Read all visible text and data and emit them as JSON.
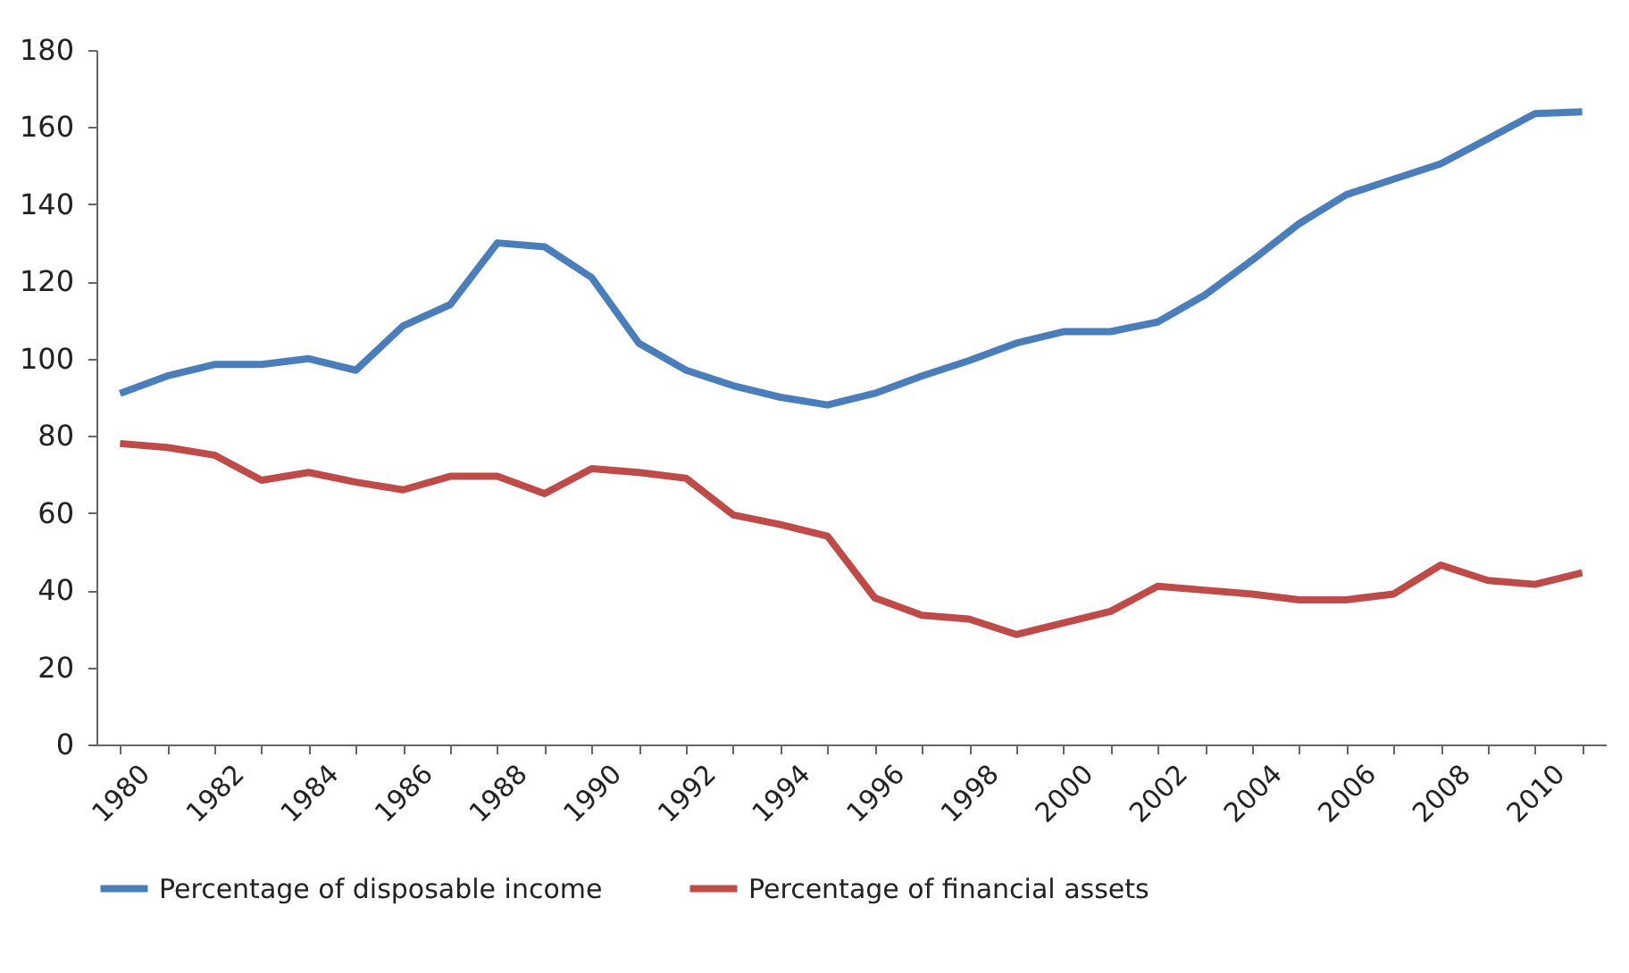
{
  "chart_data": {
    "type": "line",
    "categories": [
      "1980",
      null,
      "1982",
      null,
      "1984",
      null,
      "1986",
      null,
      "1988",
      null,
      "1990",
      null,
      "1992",
      null,
      "1994",
      null,
      "1996",
      null,
      "1998",
      null,
      "2000",
      null,
      "2002",
      null,
      "2004",
      null,
      "2006",
      null,
      "2008",
      null,
      "2010",
      null
    ],
    "series": [
      {
        "name": "Percentage of disposable income",
        "color": "#4a7ebb",
        "values": [
          91,
          95.5,
          98.5,
          98.5,
          100,
          97,
          108.5,
          114,
          130,
          129,
          121,
          104,
          97,
          93,
          90,
          88,
          91,
          95.5,
          99.5,
          104,
          107,
          107,
          109.5,
          116.5,
          125.5,
          135,
          142.5,
          146.5,
          150.5,
          157,
          163.5,
          164
        ]
      },
      {
        "name": "Percentage of financial assets",
        "color": "#be4b48",
        "values": [
          78,
          77,
          75,
          68.5,
          70.5,
          68,
          66,
          69.5,
          69.5,
          65,
          71.5,
          70.5,
          69,
          59.5,
          57,
          54,
          38,
          33.5,
          32.5,
          28.5,
          31.5,
          34.5,
          41,
          40,
          39,
          37.5,
          37.5,
          39,
          46.5,
          42.5,
          41.5,
          44.5
        ]
      }
    ],
    "ylim": [
      0,
      180
    ],
    "yticks": [
      0,
      20,
      40,
      60,
      80,
      100,
      120,
      140,
      160,
      180
    ],
    "legend": "bottom"
  }
}
